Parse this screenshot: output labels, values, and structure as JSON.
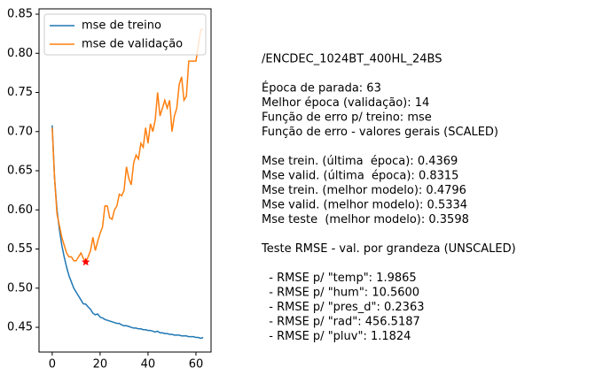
{
  "chart_data": {
    "type": "line",
    "x": [
      0,
      1,
      2,
      3,
      4,
      5,
      6,
      7,
      8,
      9,
      10,
      11,
      12,
      13,
      14,
      15,
      16,
      17,
      18,
      19,
      20,
      21,
      22,
      23,
      24,
      25,
      26,
      27,
      28,
      29,
      30,
      31,
      32,
      33,
      34,
      35,
      36,
      37,
      38,
      39,
      40,
      41,
      42,
      43,
      44,
      45,
      46,
      47,
      48,
      49,
      50,
      51,
      52,
      53,
      54,
      55,
      56,
      57,
      58,
      59,
      60,
      61,
      62,
      63
    ],
    "series": [
      {
        "name": "mse de treino",
        "color": "#1f77b4",
        "values": [
          0.708,
          0.64,
          0.6,
          0.575,
          0.555,
          0.54,
          0.527,
          0.516,
          0.508,
          0.5,
          0.495,
          0.49,
          0.485,
          0.48,
          0.4796,
          0.476,
          0.473,
          0.468,
          0.466,
          0.467,
          0.463,
          0.462,
          0.46,
          0.459,
          0.458,
          0.457,
          0.456,
          0.455,
          0.455,
          0.453,
          0.452,
          0.452,
          0.451,
          0.45,
          0.449,
          0.449,
          0.448,
          0.448,
          0.447,
          0.447,
          0.446,
          0.446,
          0.445,
          0.444,
          0.445,
          0.443,
          0.443,
          0.442,
          0.442,
          0.441,
          0.441,
          0.44,
          0.44,
          0.44,
          0.439,
          0.439,
          0.439,
          0.438,
          0.438,
          0.438,
          0.437,
          0.437,
          0.436,
          0.4369
        ]
      },
      {
        "name": "mse de validação",
        "color": "#ff7f0e",
        "values": [
          0.705,
          0.64,
          0.595,
          0.58,
          0.565,
          0.555,
          0.545,
          0.54,
          0.54,
          0.535,
          0.535,
          0.54,
          0.545,
          0.538,
          0.5334,
          0.54,
          0.548,
          0.565,
          0.548,
          0.56,
          0.57,
          0.578,
          0.605,
          0.605,
          0.59,
          0.588,
          0.6,
          0.605,
          0.62,
          0.618,
          0.625,
          0.655,
          0.64,
          0.632,
          0.66,
          0.67,
          0.665,
          0.685,
          0.68,
          0.705,
          0.685,
          0.71,
          0.7,
          0.715,
          0.75,
          0.72,
          0.73,
          0.74,
          0.73,
          0.74,
          0.7,
          0.72,
          0.73,
          0.76,
          0.77,
          0.74,
          0.745,
          0.79,
          0.79,
          0.79,
          0.79,
          0.81,
          0.83,
          0.8315
        ]
      }
    ],
    "best_point": {
      "x": 14,
      "y": 0.5334,
      "color": "#ff0000"
    },
    "xlim": [
      -5.5,
      66.3
    ],
    "ylim": [
      0.4184,
      0.8568
    ],
    "xticks": [
      0,
      20,
      40,
      60
    ],
    "yticks": [
      {
        "value": 0.45,
        "label": "0.45"
      },
      {
        "value": 0.5,
        "label": "0.50"
      },
      {
        "value": 0.55,
        "label": "0.55"
      },
      {
        "value": 0.6,
        "label": "0.60"
      },
      {
        "value": 0.65,
        "label": "0.65"
      },
      {
        "value": 0.7,
        "label": "0.70"
      },
      {
        "value": 0.75,
        "label": "0.75"
      },
      {
        "value": 0.8,
        "label": "0.80"
      },
      {
        "value": 0.85,
        "label": "0.85"
      }
    ],
    "legend": "upper left",
    "annotation_blocks": [
      [
        "/ENCDEC_1024BT_400HL_24BS"
      ],
      [
        "Época de parada: 63",
        "Melhor época (validação): 14",
        "Função de erro p/ treino: mse",
        "Função de erro - valores gerais (SCALED)"
      ],
      [
        "Mse trein. (última  época): 0.4369",
        "Mse valid. (última  época): 0.8315",
        "Mse trein. (melhor modelo): 0.4796",
        "Mse valid. (melhor modelo): 0.5334",
        "Mse teste  (melhor modelo): 0.3598"
      ],
      [
        "Teste RMSE - val. por grandeza (UNSCALED)"
      ],
      [
        "  - RMSE p/ \"temp\": 1.9865",
        "  - RMSE p/ \"hum\": 10.5600",
        "  - RMSE p/ \"pres_d\": 0.2363",
        "  - RMSE p/ \"rad\": 456.5187",
        "  - RMSE p/ \"pluv\": 1.1824"
      ]
    ]
  }
}
